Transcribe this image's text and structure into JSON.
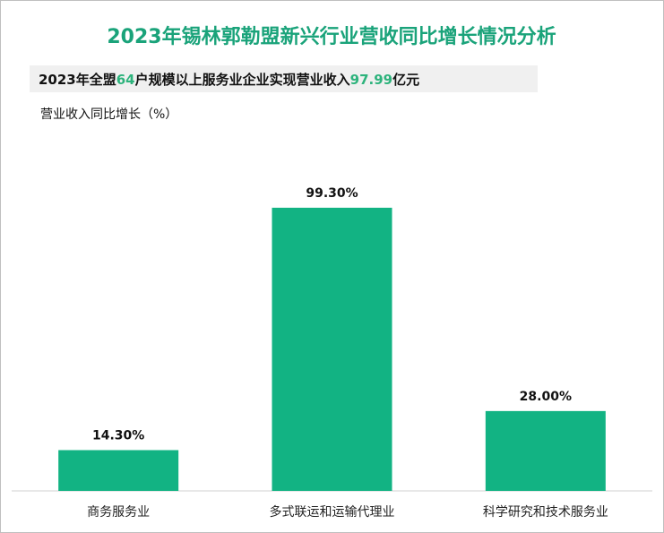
{
  "chart_data": {
    "type": "bar",
    "title": "2023年锡林郭勒盟新兴行业营收同比增长情况分析",
    "subtitle_parts": [
      "2023年全盟",
      "64",
      "户规模以上服务业企业实现营业收入",
      "97.99",
      "亿元"
    ],
    "y_axis_label": "营业收入同比增长（%）",
    "categories": [
      "商务服务业",
      "多式联运和运输代理业",
      "科学研究和技术服务业"
    ],
    "values": [
      14.3,
      99.3,
      28.0
    ],
    "value_labels": [
      "14.30%",
      "99.30%",
      "28.00%"
    ],
    "color": "#12b383",
    "ylim": [
      0,
      120
    ]
  }
}
